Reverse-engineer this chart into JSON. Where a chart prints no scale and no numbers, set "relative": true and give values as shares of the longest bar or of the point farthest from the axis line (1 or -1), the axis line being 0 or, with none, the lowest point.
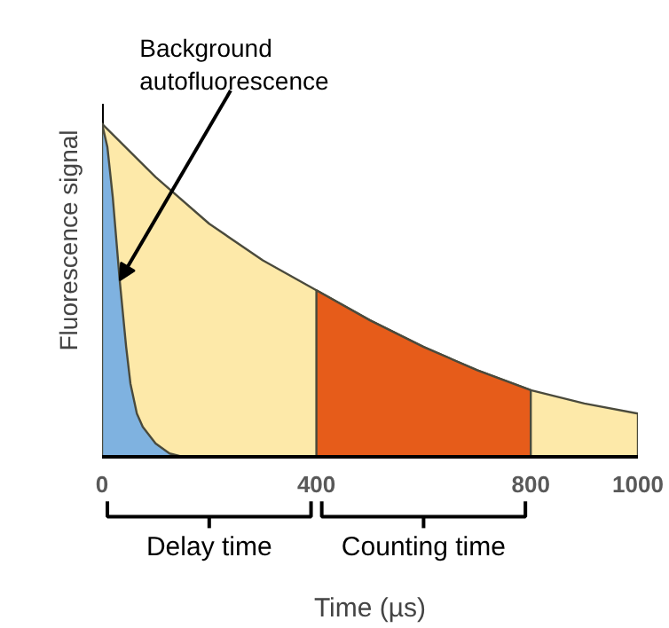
{
  "chart_data": {
    "type": "area",
    "relative": true,
    "xlabel": "Time (µs)",
    "ylabel": "Fluorescence signal",
    "xlim": [
      0,
      1000
    ],
    "xticks": [
      0,
      400,
      800,
      1000
    ],
    "series": [
      {
        "color": "#fde9a9",
        "x": [
          0,
          100,
          200,
          300,
          400,
          500,
          600,
          700,
          800,
          900,
          1000
        ],
        "values": [
          1.0,
          0.84,
          0.7,
          0.59,
          0.5,
          0.41,
          0.33,
          0.26,
          0.2,
          0.16,
          0.13
        ]
      },
      {
        "color": "#e65c1a",
        "x": [
          400,
          500,
          600,
          700,
          800
        ],
        "values": [
          0.5,
          0.41,
          0.33,
          0.26,
          0.2
        ]
      },
      {
        "color": "#7fb2e0",
        "x": [
          0,
          10,
          20,
          33,
          45,
          53,
          65,
          76,
          100,
          126,
          150
        ],
        "values": [
          1.0,
          0.93,
          0.78,
          0.53,
          0.33,
          0.22,
          0.13,
          0.09,
          0.04,
          0.01,
          0.0
        ]
      }
    ],
    "annotations": [
      {
        "text": "Background\nautofluorescence",
        "x": 33,
        "y": 0.53
      },
      "Delay time",
      "Counting time"
    ]
  }
}
